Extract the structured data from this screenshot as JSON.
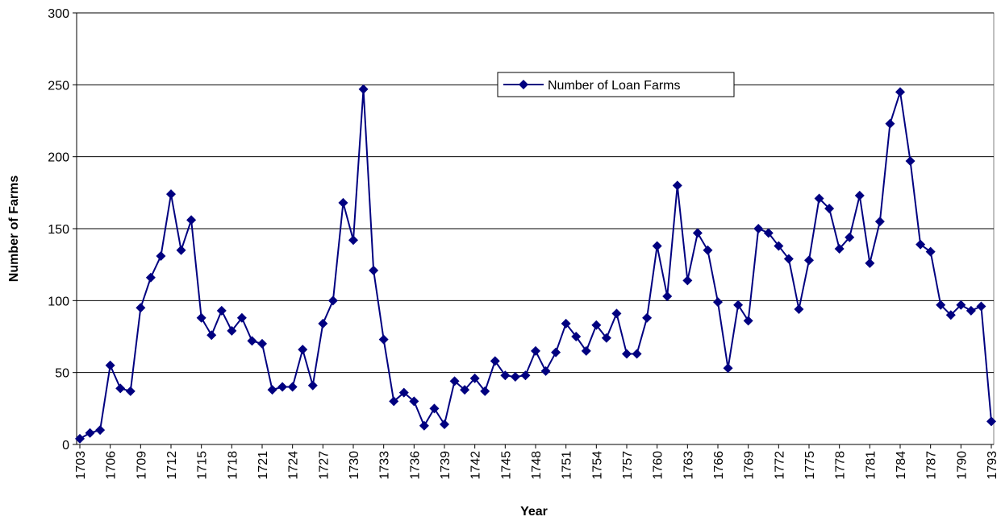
{
  "chart_data": {
    "type": "line",
    "x_label": "Year",
    "y_label": "Number of Farms",
    "x": [
      1703,
      1704,
      1705,
      1706,
      1707,
      1708,
      1709,
      1710,
      1711,
      1712,
      1713,
      1714,
      1715,
      1716,
      1717,
      1718,
      1719,
      1720,
      1721,
      1722,
      1723,
      1724,
      1725,
      1726,
      1727,
      1728,
      1729,
      1730,
      1731,
      1732,
      1733,
      1734,
      1735,
      1736,
      1737,
      1738,
      1739,
      1740,
      1741,
      1742,
      1743,
      1744,
      1745,
      1746,
      1747,
      1748,
      1749,
      1750,
      1751,
      1752,
      1753,
      1754,
      1755,
      1756,
      1757,
      1758,
      1759,
      1760,
      1761,
      1762,
      1763,
      1764,
      1765,
      1766,
      1767,
      1768,
      1769,
      1770,
      1771,
      1772,
      1773,
      1774,
      1775,
      1776,
      1777,
      1778,
      1779,
      1780,
      1781,
      1782,
      1783,
      1784,
      1785,
      1786,
      1787,
      1788,
      1789,
      1790,
      1791,
      1792,
      1793
    ],
    "series": [
      {
        "name": "Number of Loan Farms",
        "color": "#000080",
        "values": [
          4,
          8,
          10,
          55,
          39,
          37,
          95,
          116,
          131,
          174,
          135,
          156,
          88,
          76,
          93,
          79,
          88,
          72,
          70,
          38,
          40,
          40,
          66,
          41,
          84,
          100,
          168,
          142,
          247,
          121,
          73,
          30,
          36,
          30,
          13,
          25,
          14,
          44,
          38,
          46,
          37,
          58,
          48,
          47,
          48,
          65,
          51,
          64,
          84,
          75,
          65,
          83,
          74,
          91,
          63,
          63,
          88,
          138,
          103,
          180,
          114,
          147,
          135,
          99,
          53,
          97,
          86,
          150,
          147,
          138,
          129,
          94,
          128,
          171,
          164,
          136,
          144,
          173,
          126,
          155,
          223,
          245,
          197,
          139,
          134,
          97,
          90,
          97,
          93,
          96,
          16
        ]
      }
    ],
    "xlim": [
      1703,
      1793
    ],
    "xticks": [
      1703,
      1706,
      1709,
      1712,
      1715,
      1718,
      1721,
      1724,
      1727,
      1730,
      1733,
      1736,
      1739,
      1742,
      1745,
      1748,
      1751,
      1754,
      1757,
      1760,
      1763,
      1766,
      1769,
      1772,
      1775,
      1778,
      1781,
      1784,
      1787,
      1790,
      1793
    ],
    "ylim": [
      0,
      300
    ],
    "yticks": [
      0,
      50,
      100,
      150,
      200,
      250,
      300
    ],
    "grid": true,
    "legend": "upper center"
  }
}
